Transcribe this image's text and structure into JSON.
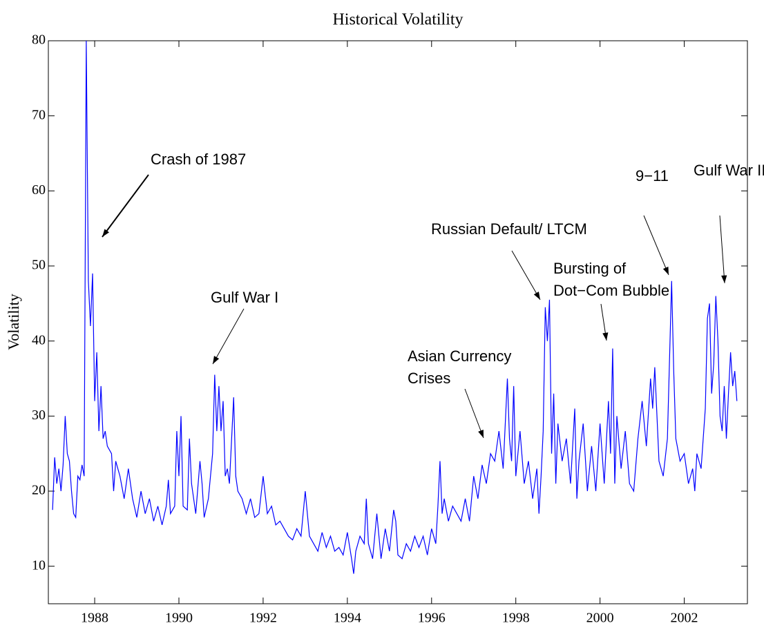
{
  "chart_data": {
    "type": "line",
    "title": "Historical Volatility",
    "y_label": "Volatility",
    "xlim": [
      1986.9,
      2003.5
    ],
    "xticks": [
      1988,
      1990,
      1992,
      1994,
      1996,
      1998,
      2000,
      2002
    ],
    "ylim": [
      5,
      80
    ],
    "yticks": [
      10,
      20,
      30,
      40,
      50,
      60,
      70,
      80
    ],
    "grid": false,
    "annotations": [
      [
        "Crash of 1987"
      ],
      [
        "Gulf War I"
      ],
      [
        "Asian Currency",
        "Crises"
      ],
      [
        "Russian Default/ LTCM"
      ],
      [
        "Bursting of",
        "Dot−Com Bubble"
      ],
      [
        "9−11"
      ],
      [
        "Gulf War II"
      ]
    ],
    "series": [
      {
        "color": "#0000ff",
        "x": [
          1987.0,
          1987.05,
          1987.1,
          1987.15,
          1987.2,
          1987.25,
          1987.3,
          1987.35,
          1987.4,
          1987.45,
          1987.5,
          1987.55,
          1987.6,
          1987.65,
          1987.7,
          1987.75,
          1987.8,
          1987.85,
          1987.9,
          1987.95,
          1988.0,
          1988.05,
          1988.1,
          1988.15,
          1988.2,
          1988.25,
          1988.3,
          1988.4,
          1988.45,
          1988.5,
          1988.6,
          1988.7,
          1988.8,
          1988.9,
          1989.0,
          1989.1,
          1989.2,
          1989.3,
          1989.4,
          1989.5,
          1989.6,
          1989.7,
          1989.75,
          1989.8,
          1989.9,
          1989.95,
          1990.0,
          1990.05,
          1990.1,
          1990.2,
          1990.25,
          1990.3,
          1990.4,
          1990.5,
          1990.55,
          1990.6,
          1990.7,
          1990.8,
          1990.85,
          1990.9,
          1990.95,
          1991.0,
          1991.05,
          1991.1,
          1991.15,
          1991.2,
          1991.3,
          1991.35,
          1991.4,
          1991.5,
          1991.6,
          1991.7,
          1991.8,
          1991.9,
          1992.0,
          1992.1,
          1992.2,
          1992.3,
          1992.4,
          1992.5,
          1992.6,
          1992.7,
          1992.8,
          1992.9,
          1993.0,
          1993.1,
          1993.2,
          1993.3,
          1993.4,
          1993.5,
          1993.6,
          1993.7,
          1993.8,
          1993.9,
          1994.0,
          1994.1,
          1994.15,
          1994.2,
          1994.3,
          1994.4,
          1994.45,
          1994.5,
          1994.6,
          1994.7,
          1994.8,
          1994.9,
          1995.0,
          1995.1,
          1995.15,
          1995.2,
          1995.3,
          1995.4,
          1995.5,
          1995.6,
          1995.7,
          1995.8,
          1995.9,
          1996.0,
          1996.1,
          1996.15,
          1996.2,
          1996.25,
          1996.3,
          1996.4,
          1996.5,
          1996.6,
          1996.7,
          1996.8,
          1996.9,
          1997.0,
          1997.1,
          1997.2,
          1997.3,
          1997.4,
          1997.5,
          1997.6,
          1997.7,
          1997.8,
          1997.85,
          1997.9,
          1997.95,
          1998.0,
          1998.1,
          1998.2,
          1998.3,
          1998.4,
          1998.5,
          1998.55,
          1998.6,
          1998.65,
          1998.7,
          1998.75,
          1998.8,
          1998.85,
          1998.9,
          1998.95,
          1999.0,
          1999.1,
          1999.2,
          1999.3,
          1999.4,
          1999.45,
          1999.5,
          1999.6,
          1999.7,
          1999.8,
          1999.9,
          2000.0,
          2000.1,
          2000.2,
          2000.25,
          2000.3,
          2000.35,
          2000.4,
          2000.5,
          2000.6,
          2000.7,
          2000.8,
          2000.9,
          2001.0,
          2001.1,
          2001.2,
          2001.25,
          2001.3,
          2001.4,
          2001.5,
          2001.6,
          2001.7,
          2001.75,
          2001.8,
          2001.9,
          2002.0,
          2002.1,
          2002.2,
          2002.25,
          2002.3,
          2002.4,
          2002.5,
          2002.55,
          2002.6,
          2002.65,
          2002.7,
          2002.75,
          2002.8,
          2002.85,
          2002.9,
          2002.95,
          2003.0,
          2003.05,
          2003.1,
          2003.15,
          2003.2,
          2003.25
        ],
        "values": [
          17.5,
          24.5,
          21,
          23,
          20,
          23.5,
          30,
          25,
          24,
          20,
          17,
          16.5,
          22,
          21.5,
          23.5,
          22,
          80,
          48,
          42,
          49,
          32,
          38.5,
          28,
          34,
          27,
          28,
          26,
          25,
          20,
          24,
          22,
          19,
          23,
          19,
          16.5,
          20,
          17,
          19,
          16,
          18,
          15.5,
          18,
          21.5,
          17,
          18,
          28,
          22,
          30,
          18,
          17.5,
          27,
          21,
          17,
          24,
          21,
          16.5,
          19,
          25,
          35.5,
          28,
          34,
          28,
          32,
          22,
          23,
          21,
          32.5,
          22,
          20,
          19,
          17,
          19,
          16.5,
          17,
          22,
          17,
          18,
          15.5,
          16,
          15,
          14,
          13.5,
          15,
          14,
          20,
          14,
          13,
          12,
          14.5,
          12.5,
          14,
          12,
          12.5,
          11.5,
          14.5,
          11,
          9,
          12,
          14,
          13,
          19,
          13,
          11,
          17,
          11,
          15,
          12,
          17.5,
          16,
          11.5,
          11,
          13,
          12,
          14,
          12.5,
          14,
          11.5,
          15,
          13,
          18,
          24,
          17,
          19,
          16,
          18,
          17,
          16,
          19,
          16,
          22,
          19,
          23.5,
          21,
          25,
          24,
          28,
          23,
          35,
          27,
          24,
          34,
          22,
          28,
          21,
          24,
          19,
          23,
          17,
          22,
          28,
          44.5,
          40,
          45.5,
          25,
          33,
          21,
          29,
          24,
          27,
          21,
          31,
          19,
          24,
          29,
          20,
          26,
          20,
          29,
          21,
          32,
          25,
          39,
          21,
          30,
          23,
          28,
          21,
          20,
          27,
          32,
          26,
          35,
          31,
          36.5,
          24,
          22,
          27,
          48,
          36,
          27,
          24,
          25,
          21,
          23,
          20,
          25,
          23,
          31,
          43,
          45,
          33,
          37,
          46,
          40,
          30,
          28,
          34,
          27,
          33,
          38.5,
          34,
          36,
          32
        ]
      }
    ]
  }
}
